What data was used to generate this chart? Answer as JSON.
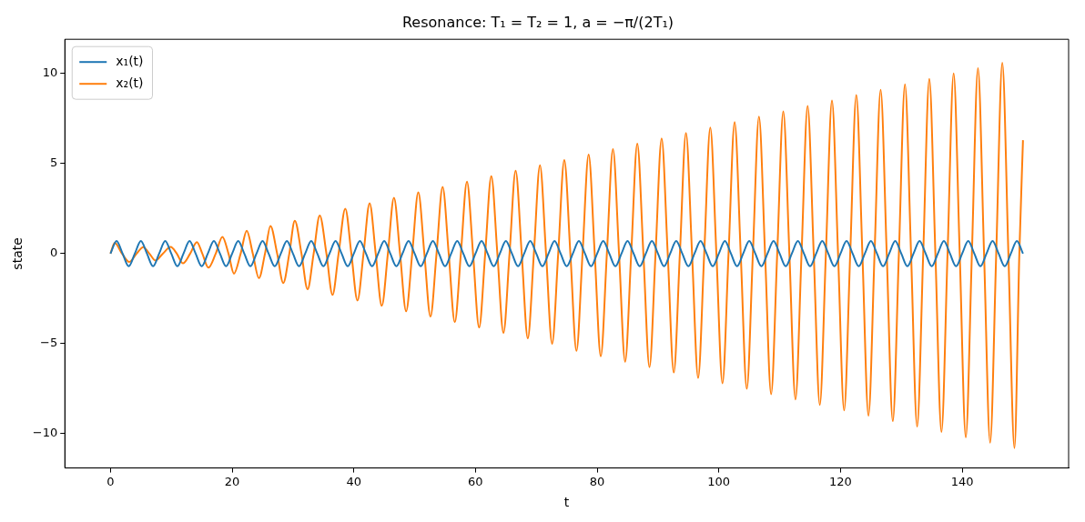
{
  "chart_data": {
    "type": "line",
    "title": "Resonance: T₁ = T₂ = 1, a = −π/(2T₁)",
    "xlabel": "t",
    "ylabel": "state",
    "xlim": [
      -7.5,
      157.5
    ],
    "xticks": [
      0,
      20,
      40,
      60,
      80,
      100,
      120,
      140
    ],
    "ylim": [
      -11.9,
      11.9
    ],
    "yticks": [
      -10,
      -5,
      0,
      5,
      10
    ],
    "grid": false,
    "legend": "top left",
    "marker": "none",
    "line_style": "solid",
    "series": [
      {
        "name": "x₁(t)",
        "color": "#1f77b4",
        "x": [
          0,
          1,
          2,
          3,
          4,
          5,
          6,
          7,
          8,
          9,
          10,
          11,
          12,
          13,
          14,
          15,
          16,
          17,
          18,
          19,
          20,
          21,
          22,
          23,
          24,
          25,
          26,
          27,
          28,
          29,
          30,
          31,
          32,
          33,
          34,
          35,
          36,
          37,
          38,
          39,
          40,
          41,
          42,
          43,
          44,
          45,
          46,
          47,
          48,
          49,
          50,
          51,
          52,
          53,
          54,
          55,
          56,
          57,
          58,
          59,
          60,
          61,
          62,
          63,
          64,
          65,
          66,
          67,
          68,
          69,
          70,
          71,
          72,
          73,
          74,
          75,
          76,
          77,
          78,
          79,
          80,
          81,
          82,
          83,
          84,
          85,
          86,
          87,
          88,
          89,
          90,
          91,
          92,
          93,
          94,
          95,
          96,
          97,
          98,
          99,
          100,
          101,
          102,
          103,
          104,
          105,
          106,
          107,
          108,
          109,
          110,
          111,
          112,
          113,
          114,
          115,
          116,
          117,
          118,
          119,
          120,
          121,
          122,
          123,
          124,
          125,
          126,
          127,
          128,
          129,
          130,
          131,
          132,
          133,
          134,
          135,
          136,
          137,
          138,
          139,
          140,
          141,
          142,
          143,
          144,
          145,
          146,
          147,
          148,
          149,
          150
        ],
        "values": [
          0,
          0.7,
          0,
          -0.7,
          0,
          0.7,
          0,
          -0.7,
          0,
          0.7,
          0,
          -0.7,
          0,
          0.7,
          0,
          -0.7,
          0,
          0.7,
          0,
          -0.7,
          0,
          0.7,
          0,
          -0.7,
          0,
          0.7,
          0,
          -0.7,
          0,
          0.7,
          0,
          -0.7,
          0,
          0.7,
          0,
          -0.7,
          0,
          0.7,
          0,
          -0.7,
          0,
          0.7,
          0,
          -0.7,
          0,
          0.7,
          0,
          -0.7,
          0,
          0.7,
          0,
          -0.7,
          0,
          0.7,
          0,
          -0.7,
          0,
          0.7,
          0,
          -0.7,
          0,
          0.7,
          0,
          -0.7,
          0,
          0.7,
          0,
          -0.7,
          0,
          0.7,
          0,
          -0.7,
          0,
          0.7,
          0,
          -0.7,
          0,
          0.7,
          0,
          -0.7,
          0,
          0.7,
          0,
          -0.7,
          0,
          0.7,
          0,
          -0.7,
          0,
          0.7,
          0,
          -0.7,
          0,
          0.7,
          0,
          -0.7,
          0,
          0.7,
          0,
          -0.7,
          0,
          0.7,
          0,
          -0.7,
          0,
          0.7,
          0,
          -0.7,
          0,
          0.7,
          0,
          -0.7,
          0,
          0.7,
          0,
          -0.7,
          0,
          0.7,
          0,
          -0.7,
          0,
          0.7,
          0,
          -0.7,
          0,
          0.7,
          0,
          -0.7,
          0,
          0.7,
          0,
          -0.7,
          0,
          0.7,
          0,
          -0.7,
          0,
          0.7,
          0,
          -0.7,
          0,
          0.7,
          0,
          -0.7,
          0,
          0.7,
          0,
          -0.7,
          0,
          0.7,
          0
        ]
      },
      {
        "name": "x₂(t)",
        "color": "#ff7f0e",
        "x": [
          0,
          0.7,
          1.9,
          3.1,
          4.3,
          5.4,
          6.4,
          7.4,
          8.6,
          9.9,
          10.9,
          11.9,
          13.1,
          14.2,
          15.1,
          16.1,
          17.3,
          18.4,
          19.4,
          20.3,
          21.4,
          22.4,
          23.4,
          24.4,
          25.4,
          26.3,
          27.4,
          28.4,
          29.4,
          30.3,
          31.4,
          32.4,
          33.4,
          34.4,
          35.5,
          36.5,
          37.5,
          38.6,
          39.6,
          40.6,
          41.6,
          42.6,
          43.6,
          44.6,
          45.6,
          46.6,
          47.6,
          48.6,
          49.6,
          50.6,
          51.6,
          52.6,
          53.6,
          54.6,
          55.6,
          56.6,
          57.6,
          58.6,
          59.6,
          60.6,
          61.6,
          62.6,
          63.6,
          64.6,
          65.6,
          66.6,
          67.6,
          68.6,
          69.6,
          70.6,
          71.6,
          72.6,
          73.6,
          74.6,
          75.6,
          76.6,
          77.6,
          78.6,
          79.6,
          80.6,
          81.6,
          82.6,
          83.6,
          84.6,
          85.6,
          86.6,
          87.6,
          88.6,
          89.6,
          90.6,
          91.6,
          92.6,
          93.6,
          94.6,
          95.6,
          96.6,
          97.6,
          98.6,
          99.6,
          100.6,
          101.6,
          102.6,
          103.6,
          104.6,
          105.6,
          106.6,
          107.6,
          108.6,
          109.6,
          110.6,
          111.6,
          112.6,
          113.6,
          114.6,
          115.6,
          116.6,
          117.6,
          118.6,
          119.6,
          120.6,
          121.6,
          122.6,
          123.6,
          124.6,
          125.6,
          126.6,
          127.6,
          128.6,
          129.6,
          130.6,
          131.6,
          132.6,
          133.6,
          134.6,
          135.6,
          136.6,
          137.6,
          138.6,
          139.6,
          140.6,
          141.6,
          142.6,
          143.6,
          144.6,
          145.6,
          146.6,
          147.6,
          148.6,
          149.4,
          150
        ],
        "values": [
          0,
          0.6,
          0,
          -0.46,
          0,
          0.36,
          0,
          -0.38,
          0,
          0.37,
          0,
          -0.54,
          0,
          0.64,
          0,
          -0.78,
          0,
          0.93,
          0,
          -1.11,
          0,
          1.27,
          0,
          -1.36,
          0,
          1.53,
          0,
          -1.63,
          0,
          1.83,
          0,
          -1.98,
          0,
          2.12,
          0,
          -2.29,
          0,
          2.5,
          0,
          -2.6,
          0,
          2.8,
          0,
          -2.9,
          0,
          3.1,
          0,
          -3.2,
          0,
          3.4,
          0,
          -3.5,
          0,
          3.7,
          0,
          -3.8,
          0,
          4.0,
          0,
          -4.1,
          0,
          4.3,
          0,
          -4.4,
          0,
          4.6,
          0,
          -4.7,
          0,
          4.9,
          0,
          -5.0,
          0,
          5.2,
          0,
          -5.4,
          0,
          5.5,
          0,
          -5.7,
          0,
          5.8,
          0,
          -6.0,
          0,
          6.1,
          0,
          -6.3,
          0,
          6.4,
          0,
          -6.6,
          0,
          6.7,
          0,
          -6.9,
          0,
          7.0,
          0,
          -7.2,
          0,
          7.3,
          0,
          -7.5,
          0,
          7.6,
          0,
          -7.8,
          0,
          7.9,
          0,
          -8.1,
          0,
          8.2,
          0,
          -8.4,
          0,
          8.5,
          0,
          -8.7,
          0,
          8.8,
          0,
          -9.0,
          0,
          9.1,
          0,
          -9.3,
          0,
          9.4,
          0,
          -9.6,
          0,
          9.7,
          0,
          -9.9,
          0,
          10.0,
          0,
          -10.2,
          0,
          10.3,
          0,
          -10.5,
          0,
          10.6,
          0,
          -10.8,
          0,
          6.3
        ]
      }
    ]
  }
}
